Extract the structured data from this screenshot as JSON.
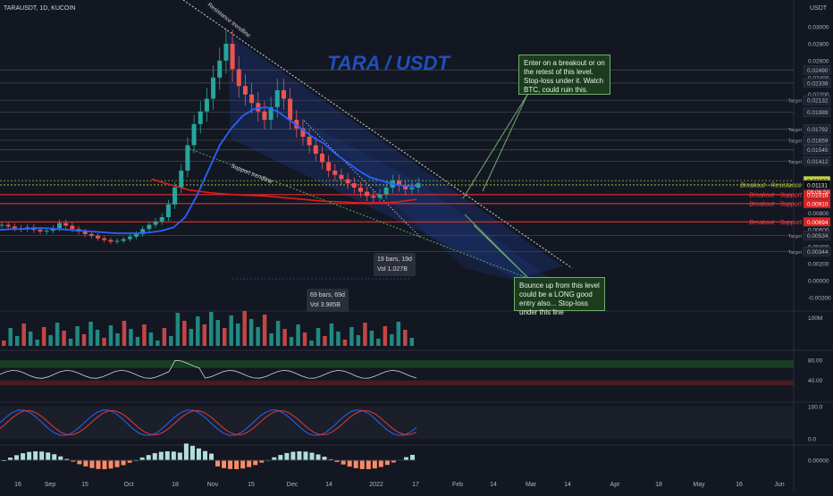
{
  "header": {
    "symbol": "TARAUSDT, 1D, KUCOIN",
    "currency": "USDT"
  },
  "chart_title": "TARA / USDT",
  "annotations": {
    "resistance_trendline": "Resistance trendline",
    "support_trendline": "Support trendline",
    "note_top": "Enter on a breakout or on the retest of this level. Stop-loss under it. Watch BTC, could ruin this.",
    "note_bottom": "Bounce up from this level could be a LONG good entry also... Stop-loss under this line",
    "measure1": {
      "bars": "19 bars, 19d",
      "vol": "Vol 1.027B"
    },
    "measure2": {
      "bars": "69 bars, 69d",
      "vol": "Vol 3.985B"
    },
    "countdown": "08:06:50"
  },
  "chart_data": {
    "type": "line",
    "title": "TARA / USDT",
    "y_axis_ticks": [
      "0.03000",
      "0.02800",
      "0.02600",
      "0.02400",
      "0.02200",
      "0.02000",
      "0.01800",
      "0.01600",
      "0.01400",
      "0.01200",
      "0.01000",
      "0.00800",
      "0.00600",
      "0.00400",
      "0.00200",
      "0.00000",
      "-0.00200"
    ],
    "x_axis_ticks": [
      "16",
      "Sep",
      "15",
      "Oct",
      "18",
      "Nov",
      "15",
      "Dec",
      "14",
      "2022",
      "17",
      "Feb",
      "14",
      "Mar",
      "14",
      "Apr",
      "18",
      "May",
      "16",
      "Jun"
    ],
    "levels": [
      {
        "value": 0.0249,
        "label": "0.02490",
        "tag": ""
      },
      {
        "value": 0.02336,
        "label": "0.02336",
        "tag": ""
      },
      {
        "value": 0.02132,
        "label": "0.02132",
        "tag": "Target"
      },
      {
        "value": 0.01989,
        "label": "0.01989",
        "tag": ""
      },
      {
        "value": 0.01792,
        "label": "0.01792",
        "tag": "Target"
      },
      {
        "value": 0.01659,
        "label": "0.01659",
        "tag": "Target"
      },
      {
        "value": 0.01545,
        "label": "0.01545",
        "tag": ""
      },
      {
        "value": 0.01412,
        "label": "0.01412",
        "tag": "Target"
      },
      {
        "value": 0.01182,
        "label": "0.01182",
        "tag": ""
      },
      {
        "value": 0.01131,
        "label": "0.01131",
        "tag": "Breakout - Resistance"
      },
      {
        "value": 0.01016,
        "label": "0.01016",
        "tag": "Breakout - Support"
      },
      {
        "value": 0.0091,
        "label": "0.00910",
        "tag": "Breakout - Support"
      },
      {
        "value": 0.00694,
        "label": "0.00694",
        "tag": "Breakout - Support"
      },
      {
        "value": 0.00534,
        "label": "0.00534",
        "tag": "Target"
      },
      {
        "value": 0.00344,
        "label": "0.00344",
        "tag": "Target"
      }
    ],
    "price_series": [
      0.0066,
      0.0064,
      0.0062,
      0.0061,
      0.0063,
      0.006,
      0.0058,
      0.0059,
      0.0062,
      0.0068,
      0.0065,
      0.0061,
      0.0058,
      0.0055,
      0.0053,
      0.005,
      0.0048,
      0.0046,
      0.0047,
      0.0049,
      0.0052,
      0.0055,
      0.0061,
      0.0066,
      0.007,
      0.0075,
      0.009,
      0.011,
      0.013,
      0.016,
      0.0185,
      0.02,
      0.0215,
      0.024,
      0.026,
      0.028,
      0.025,
      0.023,
      0.022,
      0.021,
      0.02,
      0.019,
      0.0205,
      0.0225,
      0.0215,
      0.019,
      0.018,
      0.017,
      0.016,
      0.015,
      0.014,
      0.013,
      0.0125,
      0.012,
      0.0115,
      0.011,
      0.0105,
      0.01,
      0.0098,
      0.0102,
      0.011,
      0.0118,
      0.0112,
      0.0108,
      0.011,
      0.0115
    ],
    "ma_blue": [
      0.006,
      0.0061,
      0.0061,
      0.0062,
      0.0062,
      0.0061,
      0.006,
      0.0059,
      0.0058,
      0.0057,
      0.0056,
      0.0056,
      0.0056,
      0.0057,
      0.0059,
      0.0063,
      0.0075,
      0.01,
      0.013,
      0.016,
      0.018,
      0.0195,
      0.0203,
      0.0205,
      0.02,
      0.019,
      0.018,
      0.017,
      0.0162,
      0.015,
      0.014,
      0.013,
      0.0122,
      0.0118,
      0.0114,
      0.0112,
      0.0112
    ],
    "ma_red": [
      0.012,
      0.0113,
      0.0107,
      0.0104,
      0.0102,
      0.0101,
      0.01,
      0.0098,
      0.0096,
      0.0094,
      0.0093,
      0.0092,
      0.0092,
      0.0093,
      0.0096
    ],
    "rsi_levels": [
      80,
      40
    ],
    "stoch_levels": [
      100.0,
      0.0
    ],
    "volume_label": "100M",
    "macd_label": "0.00000"
  }
}
